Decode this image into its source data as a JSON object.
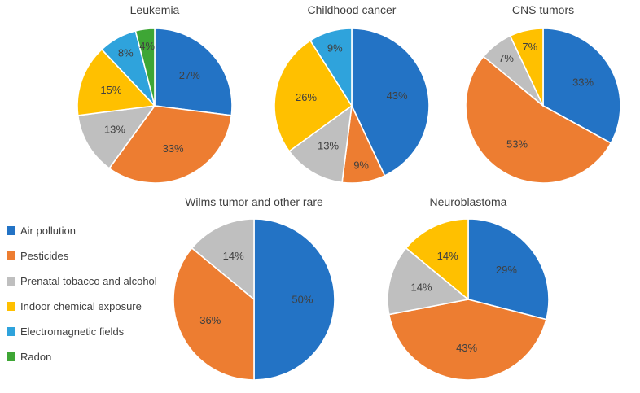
{
  "colors": {
    "air_pollution": "#2373C5",
    "pesticides": "#ED7D31",
    "prenatal_tobacco_alcohol": "#BFBFBF",
    "indoor_chemical": "#FFC000",
    "electromagnetic_fields": "#2FA3DC",
    "radon": "#3EA635",
    "label_text": "#404040"
  },
  "legend": {
    "items": [
      {
        "label": "Air pollution",
        "color": "#2373C5"
      },
      {
        "label": "Pesticides",
        "color": "#ED7D31"
      },
      {
        "label": "Prenatal tobacco and alcohol",
        "color": "#BFBFBF"
      },
      {
        "label": "Indoor chemical exposure",
        "color": "#FFC000"
      },
      {
        "label": "Electromagnetic fields",
        "color": "#2FA3DC"
      },
      {
        "label": "Radon",
        "color": "#3EA635"
      }
    ]
  },
  "chart_data": [
    {
      "type": "pie",
      "title": "Leukemia",
      "categories": [
        "Air pollution",
        "Pesticides",
        "Prenatal tobacco and alcohol",
        "Indoor chemical exposure",
        "Electromagnetic fields",
        "Radon"
      ],
      "values": [
        27,
        33,
        13,
        15,
        8,
        4
      ],
      "data_labels": [
        "27%",
        "33%",
        "13%",
        "15%",
        "8%",
        "4%"
      ],
      "colors": [
        "#2373C5",
        "#ED7D31",
        "#BFBFBF",
        "#FFC000",
        "#2FA3DC",
        "#3EA635"
      ],
      "legend_position": "left-bottom-shared",
      "start_angle_deg": 0,
      "direction": "clockwise"
    },
    {
      "type": "pie",
      "title": "Childhood cancer",
      "categories": [
        "Air pollution",
        "Pesticides",
        "Prenatal tobacco and alcohol",
        "Indoor chemical exposure",
        "Electromagnetic fields"
      ],
      "values": [
        43,
        9,
        13,
        26,
        9
      ],
      "data_labels": [
        "43%",
        "9%",
        "13%",
        "26%",
        "9%"
      ],
      "colors": [
        "#2373C5",
        "#ED7D31",
        "#BFBFBF",
        "#FFC000",
        "#2FA3DC"
      ],
      "start_angle_deg": 0,
      "direction": "clockwise"
    },
    {
      "type": "pie",
      "title": "CNS tumors",
      "categories": [
        "Air pollution",
        "Pesticides",
        "Prenatal tobacco and alcohol",
        "Indoor chemical exposure"
      ],
      "values": [
        33,
        53,
        7,
        7
      ],
      "data_labels": [
        "33%",
        "53%",
        "7%",
        "7%"
      ],
      "colors": [
        "#2373C5",
        "#ED7D31",
        "#BFBFBF",
        "#FFC000"
      ],
      "start_angle_deg": 0,
      "direction": "clockwise"
    },
    {
      "type": "pie",
      "title": "Wilms tumor and other rare",
      "categories": [
        "Air pollution",
        "Pesticides",
        "Prenatal tobacco and alcohol"
      ],
      "values": [
        50,
        36,
        14
      ],
      "data_labels": [
        "50%",
        "36%",
        "14%"
      ],
      "colors": [
        "#2373C5",
        "#ED7D31",
        "#BFBFBF"
      ],
      "start_angle_deg": 0,
      "direction": "clockwise"
    },
    {
      "type": "pie",
      "title": "Neuroblastoma",
      "categories": [
        "Air pollution",
        "Pesticides",
        "Prenatal tobacco and alcohol",
        "Indoor chemical exposure"
      ],
      "values": [
        29,
        43,
        14,
        14
      ],
      "data_labels": [
        "29%",
        "43%",
        "14%",
        "14%"
      ],
      "colors": [
        "#2373C5",
        "#ED7D31",
        "#BFBFBF",
        "#FFC000"
      ],
      "start_angle_deg": 0,
      "direction": "clockwise"
    }
  ]
}
